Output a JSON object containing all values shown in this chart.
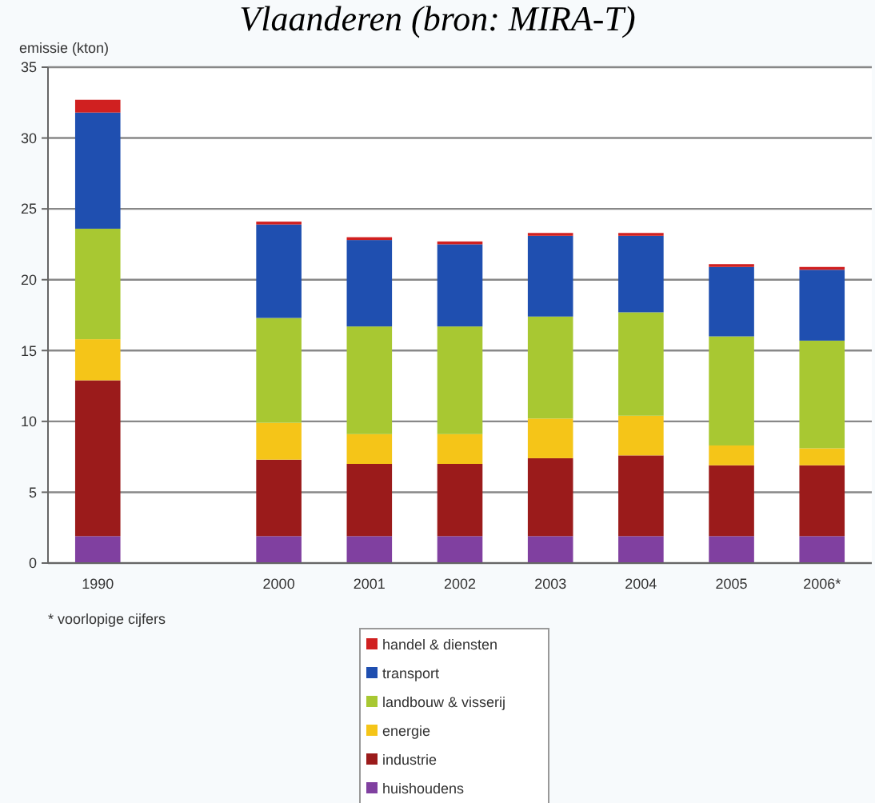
{
  "chart_data": {
    "type": "bar",
    "stacked": true,
    "title": "Vlaanderen (bron: MIRA-T)",
    "ylabel": "emissie (kton)",
    "categories": [
      "1990",
      null,
      "2000",
      "2001",
      "2002",
      "2003",
      "2004",
      "2005",
      "2006*"
    ],
    "series": [
      {
        "name": "huishoudens",
        "color": "#8040a0",
        "values": [
          1.9,
          null,
          1.9,
          1.9,
          1.9,
          1.9,
          1.9,
          1.9,
          1.9
        ]
      },
      {
        "name": "industrie",
        "color": "#9b1b1b",
        "values": [
          11.0,
          null,
          5.4,
          5.1,
          5.1,
          5.5,
          5.7,
          5.0,
          5.0
        ]
      },
      {
        "name": "energie",
        "color": "#f5c518",
        "values": [
          2.9,
          null,
          2.6,
          2.1,
          2.1,
          2.8,
          2.8,
          1.4,
          1.2
        ]
      },
      {
        "name": "landbouw & visserij",
        "color": "#a8c832",
        "values": [
          7.8,
          null,
          7.4,
          7.6,
          7.6,
          7.2,
          7.3,
          7.7,
          7.6
        ]
      },
      {
        "name": "transport",
        "color": "#1f4fb0",
        "values": [
          8.2,
          null,
          6.6,
          6.1,
          5.8,
          5.7,
          5.4,
          4.9,
          5.0
        ]
      },
      {
        "name": "handel & diensten",
        "color": "#d02020",
        "values": [
          0.9,
          null,
          0.2,
          0.2,
          0.2,
          0.2,
          0.2,
          0.2,
          0.2
        ]
      }
    ],
    "ylim": [
      0,
      35
    ],
    "yticks": [
      0,
      5,
      10,
      15,
      20,
      25,
      30,
      35
    ],
    "grid": "y",
    "legend": "bottom",
    "annotations": [
      "* voorlopige cijfers"
    ]
  }
}
